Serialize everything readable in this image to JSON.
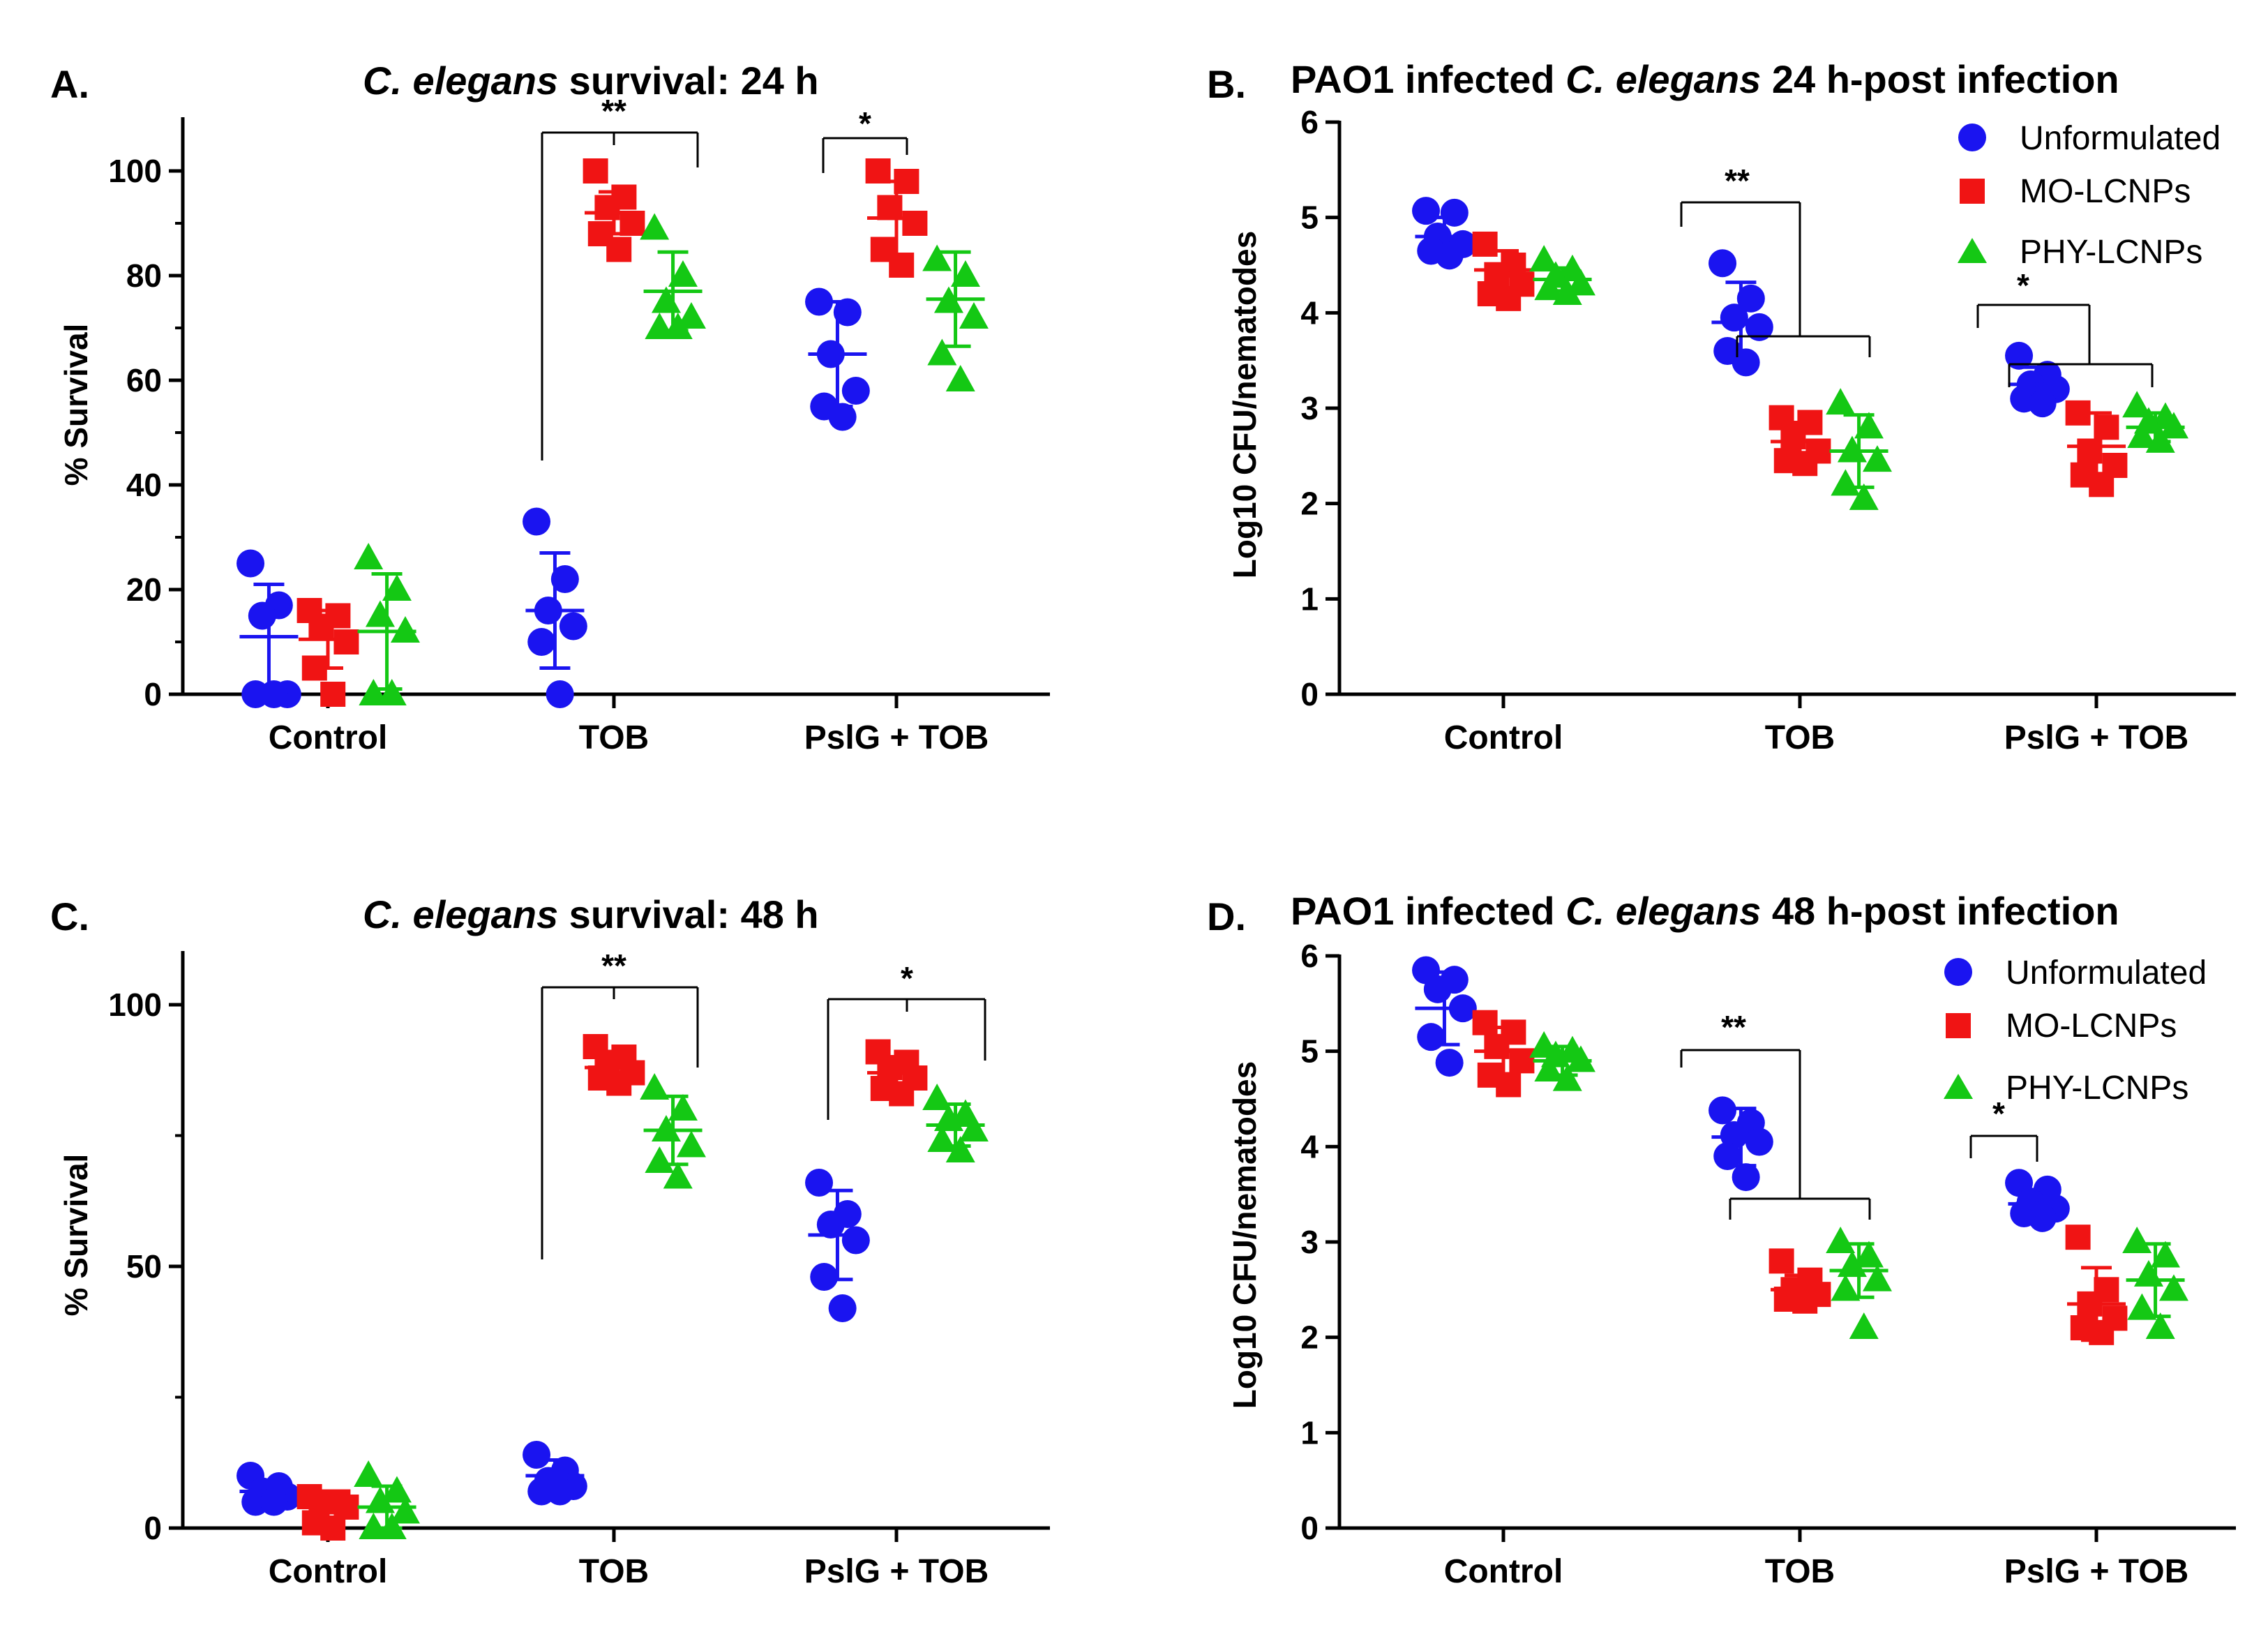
{
  "colors": {
    "unformulated": "#1a14f0",
    "mo_lcnps": "#f01414",
    "phy_lcnps": "#14c814"
  },
  "panels": [
    {
      "panel_label": "A.",
      "title": {
        "italic": "C. elegans",
        "rest": " survival: 24 h"
      },
      "ylabel": "% Survival",
      "legend": null
    },
    {
      "panel_label": "B.",
      "title": {
        "pre": "PAO1 infected ",
        "italic": "C. elegans",
        "rest": " 24 h-post infection"
      },
      "ylabel": "Log10 CFU/nematodes",
      "legend": [
        "Unformulated",
        "MO-LCNPs",
        "PHY-LCNPs"
      ]
    },
    {
      "panel_label": "C.",
      "title": {
        "italic": "C. elegans",
        "rest": " survival: 48 h"
      },
      "ylabel": "% Survival",
      "legend": null
    },
    {
      "panel_label": "D.",
      "title": {
        "pre": "PAO1 infected ",
        "italic": "C. elegans",
        "rest": " 48 h-post infection"
      },
      "ylabel": "Log10 CFU/nematodes",
      "legend": [
        "Unformulated",
        "MO-LCNPs",
        "PHY-LCNPs"
      ]
    }
  ],
  "chart_data": [
    {
      "type": "scatter",
      "title": "C. elegans survival: 24 h",
      "ylabel": "% Survival",
      "xlabel": "",
      "categories": [
        "Control",
        "TOB",
        "PslG + TOB"
      ],
      "ylim": [
        0,
        110
      ],
      "yticks": [
        0,
        20,
        40,
        60,
        80,
        100
      ],
      "series": [
        {
          "name": "Unformulated",
          "marker": "circle",
          "points": [
            [
              25,
              17,
              15,
              0,
              0,
              0
            ],
            [
              33,
              22,
              16,
              13,
              10,
              0
            ],
            [
              75,
              73,
              65,
              58,
              55,
              53
            ]
          ],
          "mean": [
            11,
            16,
            65
          ],
          "sd": [
            10,
            11,
            10
          ]
        },
        {
          "name": "MO-LCNPs",
          "marker": "square",
          "points": [
            [
              16,
              15,
              13,
              10,
              5,
              0
            ],
            [
              100,
              95,
              93,
              90,
              88,
              85
            ],
            [
              100,
              98,
              93,
              90,
              85,
              82
            ]
          ],
          "mean": [
            10.5,
            92,
            91
          ],
          "sd": [
            5.5,
            4,
            7
          ]
        },
        {
          "name": "PHY-LCNPs",
          "marker": "triangle",
          "points": [
            [
              26,
              20,
              15,
              12,
              0,
              0
            ],
            [
              89,
              80,
              75,
              72,
              70,
              70
            ],
            [
              83,
              80,
              75,
              72,
              65,
              60
            ]
          ],
          "mean": [
            12,
            77,
            75.5
          ],
          "sd": [
            11,
            7.5,
            9
          ]
        }
      ],
      "significance": [
        {
          "label": "**",
          "category": "TOB",
          "from": "Unformulated",
          "to": "MO-LCNPs and PHY-LCNPs"
        },
        {
          "label": "*",
          "category": "PslG + TOB",
          "from": "Unformulated",
          "to": "MO-LCNPs"
        }
      ]
    },
    {
      "type": "scatter",
      "title": "PAO1 infected C. elegans 24 h-post infection",
      "ylabel": "Log10 CFU/nematodes",
      "xlabel": "",
      "categories": [
        "Control",
        "TOB",
        "PslG + TOB"
      ],
      "ylim": [
        0,
        6
      ],
      "yticks": [
        0,
        1,
        2,
        3,
        4,
        5,
        6
      ],
      "legend": [
        "Unformulated",
        "MO-LCNPs",
        "PHY-LCNPs"
      ],
      "series": [
        {
          "name": "Unformulated",
          "marker": "circle",
          "points": [
            [
              5.07,
              5.05,
              4.8,
              4.72,
              4.65,
              4.6
            ],
            [
              4.52,
              4.15,
              3.95,
              3.85,
              3.6,
              3.48
            ],
            [
              3.55,
              3.35,
              3.25,
              3.2,
              3.1,
              3.05
            ]
          ],
          "mean": [
            4.8,
            3.9,
            3.25
          ],
          "sd": [
            0.2,
            0.42,
            0.18
          ]
        },
        {
          "name": "MO-LCNPs",
          "marker": "square",
          "points": [
            [
              4.72,
              4.5,
              4.4,
              4.3,
              4.2,
              4.15
            ],
            [
              2.9,
              2.85,
              2.7,
              2.55,
              2.45,
              2.42
            ],
            [
              2.95,
              2.8,
              2.55,
              2.4,
              2.3,
              2.2
            ]
          ],
          "mean": [
            4.45,
            2.65,
            2.6
          ],
          "sd": [
            0.2,
            0.2,
            0.35
          ]
        },
        {
          "name": "PHY-LCNPs",
          "marker": "triangle",
          "points": [
            [
              4.55,
              4.45,
              4.38,
              4.3,
              4.25,
              4.2
            ],
            [
              3.05,
              2.8,
              2.55,
              2.45,
              2.2,
              2.05
            ],
            [
              3.02,
              2.9,
              2.85,
              2.8,
              2.7,
              2.65
            ]
          ],
          "mean": [
            4.35,
            2.55,
            2.8
          ],
          "sd": [
            0.12,
            0.38,
            0.15
          ]
        }
      ],
      "significance": [
        {
          "label": "**",
          "category": "TOB",
          "from": "Unformulated",
          "to": "MO-LCNPs and PHY-LCNPs"
        },
        {
          "label": "*",
          "category": "PslG + TOB",
          "from": "Unformulated",
          "to": "MO-LCNPs and PHY-LCNPs"
        }
      ]
    },
    {
      "type": "scatter",
      "title": "C. elegans survival: 48 h",
      "ylabel": "% Survival",
      "xlabel": "",
      "categories": [
        "Control",
        "TOB",
        "PslG + TOB"
      ],
      "ylim": [
        0,
        110
      ],
      "yticks": [
        0,
        50,
        100
      ],
      "series": [
        {
          "name": "Unformulated",
          "marker": "circle",
          "points": [
            [
              10,
              8,
              7,
              6,
              5,
              5
            ],
            [
              14,
              11,
              9,
              8,
              7,
              7
            ],
            [
              66,
              60,
              58,
              55,
              48,
              42
            ]
          ],
          "mean": [
            7,
            10,
            56
          ],
          "sd": [
            2,
            3,
            8.5
          ]
        },
        {
          "name": "MO-LCNPs",
          "marker": "square",
          "points": [
            [
              6,
              5,
              5,
              4,
              1,
              0
            ],
            [
              92,
              90,
              89,
              87,
              86,
              85
            ],
            [
              91,
              89,
              88,
              86,
              84,
              83
            ]
          ],
          "mean": [
            4,
            88,
            87
          ],
          "sd": [
            2.5,
            3,
            3
          ]
        },
        {
          "name": "PHY-LCNPs",
          "marker": "triangle",
          "points": [
            [
              10,
              7,
              5,
              3,
              0,
              0
            ],
            [
              84,
              80,
              76,
              73,
              70,
              67
            ],
            [
              82,
              79,
              78,
              76,
              74,
              72
            ]
          ],
          "mean": [
            4,
            76,
            77
          ],
          "sd": [
            4,
            6.5,
            4
          ]
        }
      ],
      "significance": [
        {
          "label": "**",
          "category": "TOB",
          "from": "Unformulated",
          "to": "MO-LCNPs and PHY-LCNPs"
        },
        {
          "label": "*",
          "category": "PslG + TOB",
          "from": "Unformulated",
          "to": "MO-LCNPs and PHY-LCNPs"
        }
      ]
    },
    {
      "type": "scatter",
      "title": "PAO1 infected C. elegans 48 h-post infection",
      "ylabel": "Log10 CFU/nematodes",
      "xlabel": "",
      "categories": [
        "Control",
        "TOB",
        "PslG + TOB"
      ],
      "ylim": [
        0,
        6
      ],
      "yticks": [
        0,
        1,
        2,
        3,
        4,
        5,
        6
      ],
      "legend": [
        "Unformulated",
        "MO-LCNPs",
        "PHY-LCNPs"
      ],
      "series": [
        {
          "name": "Unformulated",
          "marker": "circle",
          "points": [
            [
              5.85,
              5.75,
              5.65,
              5.45,
              5.15,
              4.88
            ],
            [
              4.38,
              4.25,
              4.12,
              4.05,
              3.9,
              3.68
            ],
            [
              3.62,
              3.55,
              3.42,
              3.35,
              3.3,
              3.25
            ]
          ],
          "mean": [
            5.45,
            4.1,
            3.4
          ],
          "sd": [
            0.38,
            0.3,
            0.15
          ]
        },
        {
          "name": "MO-LCNPs",
          "marker": "square",
          "points": [
            [
              5.3,
              5.2,
              5.05,
              4.9,
              4.75,
              4.65
            ],
            [
              2.8,
              2.6,
              2.5,
              2.45,
              2.4,
              2.38
            ],
            [
              3.05,
              2.5,
              2.35,
              2.2,
              2.1,
              2.05
            ]
          ],
          "mean": [
            5.0,
            2.5,
            2.35
          ],
          "sd": [
            0.25,
            0.15,
            0.38
          ]
        },
        {
          "name": "PHY-LCNPs",
          "marker": "triangle",
          "points": [
            [
              5.05,
              5.0,
              4.95,
              4.9,
              4.8,
              4.7
            ],
            [
              3.0,
              2.85,
              2.75,
              2.6,
              2.5,
              2.1
            ],
            [
              3.0,
              2.85,
              2.65,
              2.5,
              2.3,
              2.1
            ]
          ],
          "mean": [
            4.9,
            2.7,
            2.6
          ],
          "sd": [
            0.15,
            0.28,
            0.38
          ]
        }
      ],
      "significance": [
        {
          "label": "**",
          "category": "TOB",
          "from": "Unformulated",
          "to": "MO-LCNPs and PHY-LCNPs"
        },
        {
          "label": "*",
          "category": "PslG + TOB",
          "from": "Unformulated",
          "to": "MO-LCNPs"
        }
      ]
    }
  ]
}
